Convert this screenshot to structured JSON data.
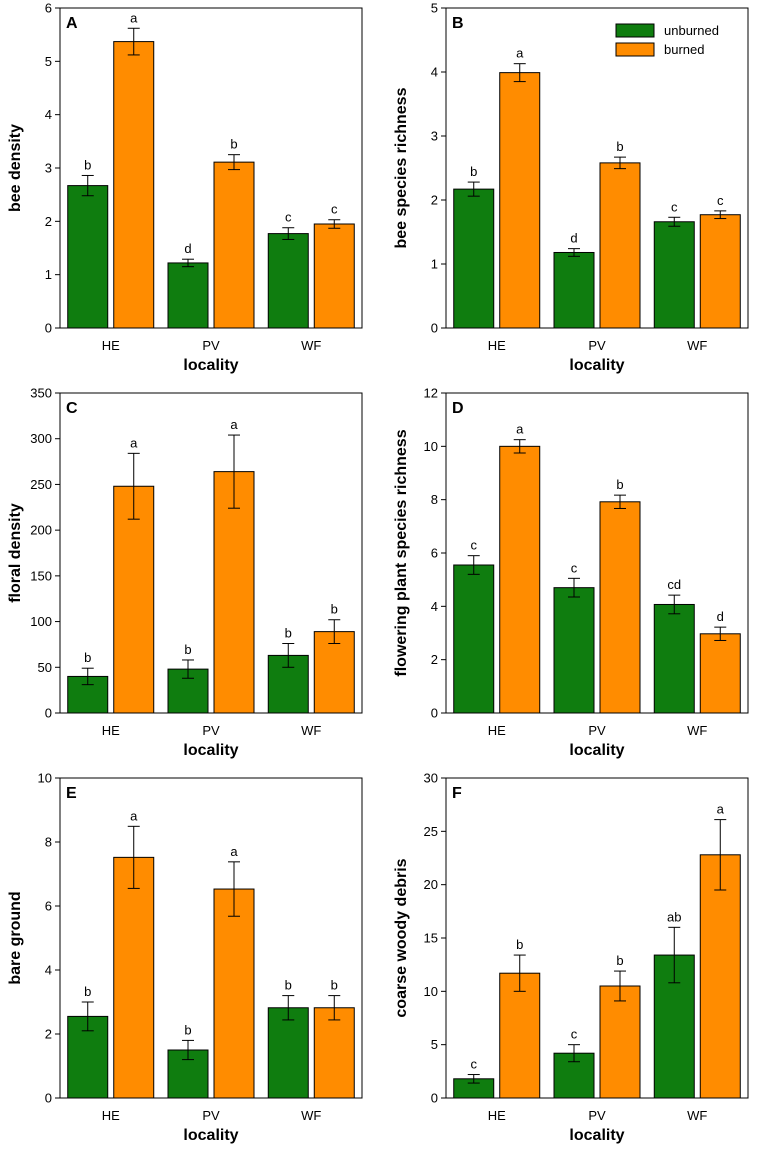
{
  "legend": {
    "series": [
      "unburned",
      "burned"
    ]
  },
  "colors": {
    "unburned": "#0f7d0f",
    "burned": "#ff8c00"
  },
  "chart_data": [
    {
      "type": "bar",
      "panel": "A",
      "categories": [
        "HE",
        "PV",
        "WF"
      ],
      "xlabel": "locality",
      "ylabel": "bee density",
      "ylim": [
        0,
        6
      ],
      "yticks": [
        "0",
        "1",
        "2",
        "3",
        "4",
        "5",
        "6"
      ],
      "series": [
        {
          "name": "unburned",
          "values": [
            2.67,
            1.22,
            1.77
          ],
          "errors": [
            0.19,
            0.07,
            0.11
          ],
          "letters": [
            "b",
            "d",
            "c"
          ]
        },
        {
          "name": "burned",
          "values": [
            5.37,
            3.11,
            1.95
          ],
          "errors": [
            0.25,
            0.14,
            0.08
          ],
          "letters": [
            "a",
            "b",
            "c"
          ]
        }
      ]
    },
    {
      "type": "bar",
      "panel": "B",
      "categories": [
        "HE",
        "PV",
        "WF"
      ],
      "xlabel": "locality",
      "ylabel": "bee species richness",
      "ylim": [
        0,
        5
      ],
      "yticks": [
        "0",
        "1",
        "2",
        "3",
        "4",
        "5"
      ],
      "legend": "top-right",
      "series": [
        {
          "name": "unburned",
          "values": [
            2.17,
            1.18,
            1.66
          ],
          "errors": [
            0.11,
            0.06,
            0.07
          ],
          "letters": [
            "b",
            "d",
            "c"
          ]
        },
        {
          "name": "burned",
          "values": [
            3.99,
            2.58,
            1.77
          ],
          "errors": [
            0.14,
            0.09,
            0.06
          ],
          "letters": [
            "a",
            "b",
            "c"
          ]
        }
      ]
    },
    {
      "type": "bar",
      "panel": "C",
      "categories": [
        "HE",
        "PV",
        "WF"
      ],
      "xlabel": "locality",
      "ylabel": "floral density",
      "ylim": [
        0,
        350
      ],
      "yticks": [
        "0",
        "50",
        "100",
        "150",
        "200",
        "250",
        "300",
        "350"
      ],
      "series": [
        {
          "name": "unburned",
          "values": [
            40,
            48,
            63
          ],
          "errors": [
            9,
            10,
            13
          ],
          "letters": [
            "b",
            "b",
            "b"
          ]
        },
        {
          "name": "burned",
          "values": [
            248,
            264,
            89
          ],
          "errors": [
            36,
            40,
            13
          ],
          "letters": [
            "a",
            "a",
            "b"
          ]
        }
      ]
    },
    {
      "type": "bar",
      "panel": "D",
      "categories": [
        "HE",
        "PV",
        "WF"
      ],
      "xlabel": "locality",
      "ylabel": "flowering plant species richness",
      "ylim": [
        0,
        12
      ],
      "yticks": [
        "0",
        "2",
        "4",
        "6",
        "8",
        "10",
        "12"
      ],
      "series": [
        {
          "name": "unburned",
          "values": [
            5.55,
            4.7,
            4.07
          ],
          "errors": [
            0.35,
            0.35,
            0.35
          ],
          "letters": [
            "c",
            "c",
            "cd"
          ]
        },
        {
          "name": "burned",
          "values": [
            10.0,
            7.92,
            2.97
          ],
          "errors": [
            0.25,
            0.25,
            0.25
          ],
          "letters": [
            "a",
            "b",
            "d"
          ]
        }
      ]
    },
    {
      "type": "bar",
      "panel": "E",
      "categories": [
        "HE",
        "PV",
        "WF"
      ],
      "xlabel": "locality",
      "ylabel": "bare ground",
      "ylim": [
        0,
        10
      ],
      "yticks": [
        "0",
        "2",
        "4",
        "6",
        "8",
        "10"
      ],
      "series": [
        {
          "name": "unburned",
          "values": [
            2.55,
            1.5,
            2.82
          ],
          "errors": [
            0.45,
            0.3,
            0.38
          ],
          "letters": [
            "b",
            "b",
            "b"
          ]
        },
        {
          "name": "burned",
          "values": [
            7.52,
            6.53,
            2.82
          ],
          "errors": [
            0.97,
            0.85,
            0.38
          ],
          "letters": [
            "a",
            "a",
            "b"
          ]
        }
      ]
    },
    {
      "type": "bar",
      "panel": "F",
      "categories": [
        "HE",
        "PV",
        "WF"
      ],
      "xlabel": "locality",
      "ylabel": "coarse woody debris",
      "ylim": [
        0,
        30
      ],
      "yticks": [
        "0",
        "5",
        "10",
        "15",
        "20",
        "25",
        "30"
      ],
      "series": [
        {
          "name": "unburned",
          "values": [
            1.8,
            4.2,
            13.4
          ],
          "errors": [
            0.4,
            0.8,
            2.6
          ],
          "letters": [
            "c",
            "c",
            "ab"
          ]
        },
        {
          "name": "burned",
          "values": [
            11.7,
            10.5,
            22.8
          ],
          "errors": [
            1.7,
            1.4,
            3.3
          ],
          "letters": [
            "b",
            "b",
            "a"
          ]
        }
      ]
    }
  ]
}
